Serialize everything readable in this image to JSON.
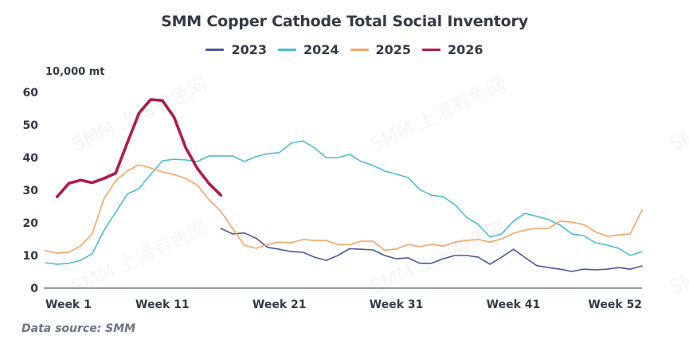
{
  "watermark": "SMM 上海有色网",
  "chart_data": {
    "type": "line",
    "title": "SMM Copper Cathode Total Social Inventory",
    "ylabel": "10,000 mt",
    "xlabel": "",
    "source": "Data source:  SMM",
    "ylim": [
      0,
      60
    ],
    "yticks": [
      0,
      10,
      20,
      30,
      40,
      50,
      60
    ],
    "xlim": [
      1,
      52
    ],
    "xticks": [
      {
        "week": 1,
        "label": "Week 1"
      },
      {
        "week": 11,
        "label": "Week 11"
      },
      {
        "week": 21,
        "label": "Week 21"
      },
      {
        "week": 31,
        "label": "Week 31"
      },
      {
        "week": 41,
        "label": "Week 41"
      },
      {
        "week": 52,
        "label": "Week 52"
      }
    ],
    "grid": false,
    "legend_position": "top-center",
    "series": [
      {
        "name": "2023",
        "color": "#4a5899",
        "start_week": 16,
        "values": [
          18.3,
          16.6,
          16.9,
          15.3,
          12.5,
          11.9,
          11.2,
          11.0,
          9.5,
          8.5,
          10.0,
          12.1,
          11.9,
          11.7,
          10.0,
          9.0,
          9.3,
          7.6,
          7.6,
          9.0,
          10.0,
          10.0,
          9.5,
          7.3,
          9.5,
          11.9,
          9.4,
          6.9,
          6.3,
          5.8,
          5.1,
          5.8,
          5.6,
          5.8,
          6.3,
          5.8,
          6.8
        ]
      },
      {
        "name": "2024",
        "color": "#4cbcd0",
        "start_week": 1,
        "values": [
          7.8,
          7.3,
          7.6,
          8.5,
          10.5,
          17.6,
          23.2,
          28.8,
          30.5,
          34.9,
          39.0,
          39.5,
          39.3,
          38.8,
          40.5,
          40.5,
          40.5,
          38.8,
          40.3,
          41.2,
          41.5,
          44.4,
          45.1,
          43.0,
          40.0,
          40.0,
          41.0,
          38.8,
          37.6,
          35.9,
          34.9,
          33.9,
          30.2,
          28.5,
          28.0,
          25.6,
          21.7,
          19.5,
          15.6,
          16.6,
          20.5,
          22.9,
          22.0,
          21.0,
          19.3,
          16.6,
          16.1,
          13.9,
          13.2,
          12.2,
          10.0,
          11.2
        ]
      },
      {
        "name": "2025",
        "color": "#f4a462",
        "start_week": 1,
        "values": [
          11.5,
          10.7,
          11.0,
          12.9,
          16.6,
          27.3,
          32.9,
          35.9,
          37.8,
          36.8,
          35.6,
          34.8,
          33.6,
          31.5,
          27.0,
          23.5,
          18.3,
          13.2,
          12.2,
          13.4,
          14.1,
          13.9,
          14.9,
          14.6,
          14.6,
          13.4,
          13.3,
          14.4,
          14.4,
          11.6,
          12.0,
          13.4,
          12.7,
          13.4,
          12.9,
          14.1,
          14.6,
          14.9,
          14.1,
          15.1,
          16.8,
          17.8,
          18.3,
          18.3,
          20.5,
          20.2,
          19.5,
          17.3,
          15.9,
          16.3,
          16.6,
          23.9
        ]
      },
      {
        "name": "2026",
        "color": "#b01a4c",
        "start_week": 2,
        "values": [
          28.0,
          32.1,
          33.1,
          32.3,
          33.6,
          35.2,
          44.5,
          53.6,
          57.8,
          57.5,
          52.4,
          43.0,
          36.6,
          32.0,
          28.5
        ]
      }
    ]
  }
}
